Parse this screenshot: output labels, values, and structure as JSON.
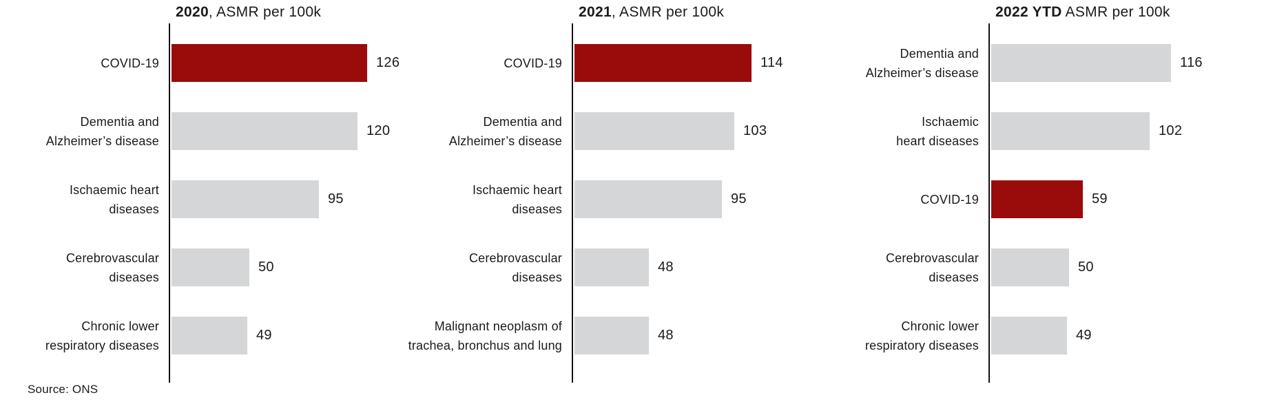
{
  "page": {
    "background": "#ffffff",
    "source_note": "Source: ONS"
  },
  "colors": {
    "bar_highlight": "#9a0b0b",
    "bar_default": "#d5d6d8",
    "axis_line": "#111111",
    "text": "#1a1a1a"
  },
  "chart_data": [
    {
      "type": "bar",
      "orientation": "horizontal",
      "title_bold": "2020",
      "title_rest": ", ASMR per 100k",
      "ylabel": "",
      "xlabel": "ASMR per 100k",
      "xlim": [
        0,
        140
      ],
      "grid": false,
      "legend": false,
      "categories": [
        "COVID-19",
        "Dementia and\nAlzheimer’s disease",
        "Ischaemic heart\ndiseases",
        "Cerebrovascular\ndiseases",
        "Chronic lower\nrespiratory diseases"
      ],
      "values": [
        126,
        120,
        95,
        50,
        49
      ],
      "value_labels": [
        "126",
        "120",
        "95",
        "50",
        "49"
      ],
      "highlight_category": "COVID-19",
      "highlight_index": 0
    },
    {
      "type": "bar",
      "orientation": "horizontal",
      "title_bold": "2021",
      "title_rest": ", ASMR per 100k",
      "ylabel": "",
      "xlabel": "ASMR per 100k",
      "xlim": [
        0,
        140
      ],
      "grid": false,
      "legend": false,
      "categories": [
        "COVID-19",
        "Dementia and\nAlzheimer’s disease",
        "Ischaemic heart\ndiseases",
        "Cerebrovascular\ndiseases",
        "Malignant neoplasm of\ntrachea, bronchus and lung"
      ],
      "values": [
        114,
        103,
        95,
        48,
        48
      ],
      "value_labels": [
        "114",
        "103",
        "95",
        "48",
        "48"
      ],
      "highlight_category": "COVID-19",
      "highlight_index": 0
    },
    {
      "type": "bar",
      "orientation": "horizontal",
      "title_bold": "2022 YTD",
      "title_rest": " ASMR per 100k",
      "ylabel": "",
      "xlabel": "ASMR per 100k",
      "xlim": [
        0,
        140
      ],
      "grid": false,
      "legend": false,
      "categories": [
        "Dementia and\nAlzheimer’s disease",
        "Ischaemic\nheart diseases",
        "COVID-19",
        "Cerebrovascular\ndiseases",
        "Chronic lower\nrespiratory diseases"
      ],
      "values": [
        116,
        102,
        59,
        50,
        49
      ],
      "value_labels": [
        "116",
        "102",
        "59",
        "50",
        "49"
      ],
      "highlight_category": "COVID-19",
      "highlight_index": 2
    }
  ]
}
